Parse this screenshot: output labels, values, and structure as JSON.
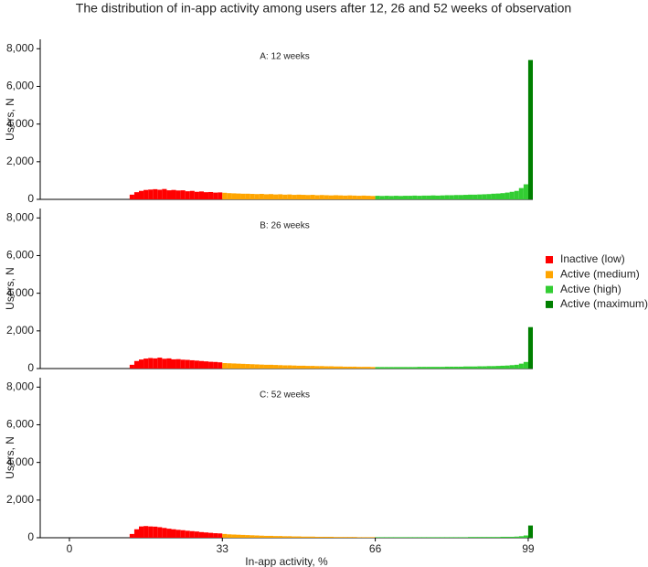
{
  "title": "The distribution of in-app activity among users after 12, 26 and 52 weeks of observation",
  "chart_data": [
    {
      "type": "histogram",
      "title": "A: 12 weeks",
      "ylabel": "Users, N",
      "xlim": [
        -6.3,
        100
      ],
      "ylim": [
        0,
        8500
      ],
      "yticks": [
        0,
        {
          "value": 2000,
          "label": "2,000"
        },
        {
          "value": 4000,
          "label": "4,000"
        },
        {
          "value": 6000,
          "label": "6,000"
        },
        {
          "value": 8000,
          "label": "8,000"
        }
      ],
      "series": [
        {
          "color": "#ff0000",
          "bins": [
            13,
            14,
            15,
            16,
            17,
            18,
            19,
            20,
            21,
            22,
            23,
            24,
            25,
            26,
            27,
            28,
            29,
            30,
            31,
            32,
            33
          ],
          "values": [
            250,
            380,
            450,
            500,
            520,
            540,
            510,
            550,
            480,
            500,
            470,
            480,
            430,
            450,
            400,
            420,
            380,
            390,
            360,
            370
          ]
        },
        {
          "color": "#ffa500",
          "bins": [
            33,
            34,
            35,
            36,
            37,
            38,
            39,
            40,
            41,
            42,
            43,
            44,
            45,
            46,
            47,
            48,
            49,
            50,
            51,
            52,
            53,
            54,
            55,
            56,
            57,
            58,
            59,
            60,
            61,
            62,
            63,
            64,
            65,
            66
          ],
          "values": [
            350,
            330,
            320,
            310,
            300,
            300,
            290,
            280,
            290,
            270,
            280,
            260,
            270,
            250,
            260,
            240,
            250,
            240,
            230,
            240,
            220,
            230,
            220,
            210,
            220,
            210,
            200,
            210,
            200,
            190,
            200,
            190,
            180
          ]
        },
        {
          "color": "#32cd32",
          "bins": [
            66,
            67,
            68,
            69,
            70,
            71,
            72,
            73,
            74,
            75,
            76,
            77,
            78,
            79,
            80,
            81,
            82,
            83,
            84,
            85,
            86,
            87,
            88,
            89,
            90,
            91,
            92,
            93,
            94,
            95,
            96,
            97,
            98,
            99
          ],
          "values": [
            190,
            180,
            190,
            180,
            190,
            180,
            190,
            190,
            200,
            190,
            200,
            200,
            210,
            200,
            210,
            220,
            220,
            230,
            230,
            240,
            250,
            250,
            260,
            270,
            280,
            300,
            310,
            330,
            360,
            400,
            450,
            600,
            800
          ]
        },
        {
          "color": "#008000",
          "bins": [
            99,
            100
          ],
          "values": [
            7400
          ]
        }
      ]
    },
    {
      "type": "histogram",
      "title": "B: 26 weeks",
      "ylabel": "Users, N",
      "xlim": [
        -6.3,
        100
      ],
      "ylim": [
        0,
        8500
      ],
      "yticks": [
        0,
        {
          "value": 2000,
          "label": "2,000"
        },
        {
          "value": 4000,
          "label": "4,000"
        },
        {
          "value": 6000,
          "label": "6,000"
        },
        {
          "value": 8000,
          "label": "8,000"
        }
      ],
      "legend": "right",
      "series": [
        {
          "name": "Inactive (low)",
          "color": "#ff0000",
          "bins": [
            13,
            14,
            15,
            16,
            17,
            18,
            19,
            20,
            21,
            22,
            23,
            24,
            25,
            26,
            27,
            28,
            29,
            30,
            31,
            32,
            33
          ],
          "values": [
            200,
            400,
            480,
            530,
            560,
            540,
            580,
            520,
            540,
            490,
            500,
            470,
            460,
            440,
            420,
            400,
            380,
            360,
            350,
            330
          ]
        },
        {
          "name": "Active (medium)",
          "color": "#ffa500",
          "bins": [
            33,
            34,
            35,
            36,
            37,
            38,
            39,
            40,
            41,
            42,
            43,
            44,
            45,
            46,
            47,
            48,
            49,
            50,
            51,
            52,
            53,
            54,
            55,
            56,
            57,
            58,
            59,
            60,
            61,
            62,
            63,
            64,
            65,
            66
          ],
          "values": [
            290,
            280,
            270,
            260,
            250,
            240,
            230,
            220,
            210,
            200,
            200,
            190,
            180,
            170,
            170,
            160,
            150,
            150,
            140,
            140,
            130,
            130,
            120,
            120,
            110,
            110,
            100,
            100,
            100,
            90,
            90,
            90,
            80
          ]
        },
        {
          "name": "Active (high)",
          "color": "#32cd32",
          "bins": [
            66,
            67,
            68,
            69,
            70,
            71,
            72,
            73,
            74,
            75,
            76,
            77,
            78,
            79,
            80,
            81,
            82,
            83,
            84,
            85,
            86,
            87,
            88,
            89,
            90,
            91,
            92,
            93,
            94,
            95,
            96,
            97,
            98,
            99
          ],
          "values": [
            80,
            80,
            80,
            80,
            80,
            80,
            80,
            80,
            80,
            90,
            90,
            90,
            90,
            90,
            90,
            100,
            100,
            100,
            100,
            110,
            110,
            110,
            120,
            120,
            130,
            130,
            140,
            150,
            160,
            180,
            200,
            260,
            350
          ]
        },
        {
          "name": "Active (maximum)",
          "color": "#008000",
          "bins": [
            99,
            100
          ],
          "values": [
            2200
          ]
        }
      ]
    },
    {
      "type": "histogram",
      "title": "C: 52 weeks",
      "ylabel": "Users, N",
      "xlabel": "In-app activity, %",
      "xlim": [
        -6.3,
        100
      ],
      "ylim": [
        0,
        8500
      ],
      "xticks": [
        0,
        33,
        66,
        99
      ],
      "yticks": [
        0,
        {
          "value": 2000,
          "label": "2,000"
        },
        {
          "value": 4000,
          "label": "4,000"
        },
        {
          "value": 6000,
          "label": "6,000"
        },
        {
          "value": 8000,
          "label": "8,000"
        }
      ],
      "series": [
        {
          "color": "#ff0000",
          "bins": [
            13,
            14,
            15,
            16,
            17,
            18,
            19,
            20,
            21,
            22,
            23,
            24,
            25,
            26,
            27,
            28,
            29,
            30,
            31,
            32,
            33
          ],
          "values": [
            200,
            450,
            600,
            620,
            600,
            590,
            560,
            520,
            480,
            450,
            420,
            400,
            370,
            350,
            330,
            300,
            280,
            260,
            240,
            230
          ]
        },
        {
          "color": "#ffa500",
          "bins": [
            33,
            34,
            35,
            36,
            37,
            38,
            39,
            40,
            41,
            42,
            43,
            44,
            45,
            46,
            47,
            48,
            49,
            50,
            51,
            52,
            53,
            54,
            55,
            56,
            57,
            58,
            59,
            60,
            61,
            62,
            63,
            64,
            65,
            66
          ],
          "values": [
            200,
            180,
            170,
            160,
            150,
            140,
            130,
            120,
            110,
            100,
            100,
            90,
            90,
            80,
            80,
            70,
            70,
            60,
            60,
            60,
            50,
            50,
            50,
            50,
            40,
            40,
            40,
            40,
            40,
            30,
            30,
            30,
            30
          ]
        },
        {
          "color": "#32cd32",
          "bins": [
            66,
            67,
            68,
            69,
            70,
            71,
            72,
            73,
            74,
            75,
            76,
            77,
            78,
            79,
            80,
            81,
            82,
            83,
            84,
            85,
            86,
            87,
            88,
            89,
            90,
            91,
            92,
            93,
            94,
            95,
            96,
            97,
            98,
            99
          ],
          "values": [
            30,
            30,
            30,
            30,
            30,
            30,
            30,
            30,
            30,
            30,
            30,
            30,
            30,
            30,
            30,
            30,
            30,
            30,
            30,
            30,
            40,
            40,
            40,
            40,
            40,
            40,
            40,
            50,
            50,
            50,
            60,
            80,
            120
          ]
        },
        {
          "color": "#008000",
          "bins": [
            99,
            100
          ],
          "values": [
            650
          ]
        }
      ]
    }
  ]
}
